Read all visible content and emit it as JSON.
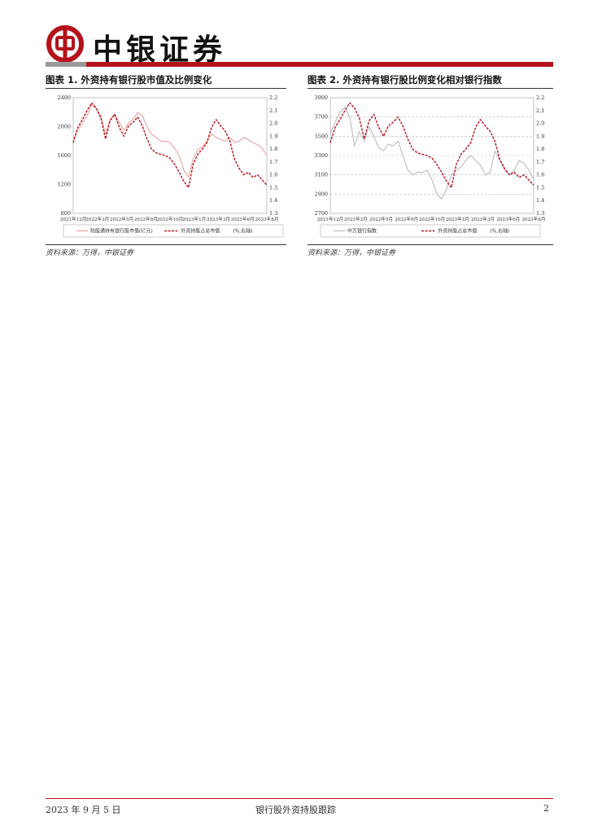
{
  "header": {
    "company_name": "中银证券",
    "colors": {
      "brand_red": "#b5121b",
      "divider_grey": "#9a9a9a"
    }
  },
  "figures": [
    {
      "title": "图表 1. 外资持有银行股市值及比例变化",
      "source": "资料来源：万得，中银证券"
    },
    {
      "title": "图表 2. 外资持有银行股比例变化相对银行指数",
      "source": "资料来源：万得，中银证券"
    }
  ],
  "chart_data": [
    {
      "type": "line",
      "x_ticks": [
        "2021年12月",
        "2022年3月",
        "2022年5月",
        "2022年8月",
        "2022年10月",
        "2023年1月",
        "2023年3月",
        "2023年6月",
        "2023年8月"
      ],
      "y_left": {
        "ticks": [
          "2400",
          "2000",
          "1600",
          "1200",
          "800"
        ],
        "lim": [
          800,
          2400
        ]
      },
      "y_right": {
        "ticks": [
          "2.2",
          "2.1",
          "2.0",
          "1.9",
          "1.8",
          "1.7",
          "1.6",
          "1.5",
          "1.4",
          "1.3"
        ],
        "lim": [
          1.3,
          2.2
        ]
      },
      "series": [
        {
          "name": "陆股通持有银行股市值(亿元)",
          "axis": "left",
          "color": "#e8a3a3",
          "style": "solid",
          "values": [
            1830,
            1950,
            2050,
            2150,
            2300,
            2250,
            2150,
            1900,
            2100,
            2180,
            2050,
            1950,
            2050,
            2100,
            2200,
            2150,
            2000,
            1900,
            1850,
            1800,
            1800,
            1780,
            1700,
            1600,
            1400,
            1300,
            1550,
            1680,
            1720,
            1800,
            1900,
            1850,
            1820,
            1800,
            1850,
            1780,
            1800,
            1850,
            1820,
            1780,
            1750,
            1700,
            1600
          ]
        },
        {
          "name": "外资持股占总市值",
          "axis": "right",
          "color": "#b5121b",
          "style": "dashed",
          "values": [
            1.85,
            1.97,
            2.03,
            2.1,
            2.16,
            2.12,
            2.04,
            1.88,
            2.02,
            2.07,
            1.97,
            1.9,
            1.98,
            2.01,
            2.05,
            1.98,
            1.88,
            1.8,
            1.77,
            1.76,
            1.75,
            1.73,
            1.68,
            1.62,
            1.55,
            1.5,
            1.68,
            1.76,
            1.8,
            1.85,
            1.97,
            2.03,
            1.98,
            1.94,
            1.86,
            1.72,
            1.65,
            1.6,
            1.62,
            1.58,
            1.6,
            1.56,
            1.52
          ]
        }
      ],
      "legend": [
        "陆股通持有银行股市值(亿元)",
        "外资持股占总市值",
        "(%,右轴)"
      ]
    },
    {
      "type": "line",
      "x_ticks": [
        "2021年12月",
        "2022年3月",
        "2022年5月",
        "2022年8月",
        "2022年10月",
        "2023年1月",
        "2023年3月",
        "2023年6月",
        "2023年8月"
      ],
      "y_left": {
        "ticks": [
          "3900",
          "3700",
          "3500",
          "3300",
          "3100",
          "2900",
          "2700"
        ],
        "lim": [
          2700,
          3900
        ]
      },
      "y_right": {
        "ticks": [
          "2.2",
          "2.1",
          "2.0",
          "1.9",
          "1.8",
          "1.7",
          "1.6",
          "1.5",
          "1.4",
          "1.3"
        ],
        "lim": [
          1.3,
          2.2
        ]
      },
      "series": [
        {
          "name": "中万银行指数",
          "axis": "left",
          "color": "#bcbcbc",
          "style": "solid",
          "values": [
            3520,
            3650,
            3750,
            3800,
            3700,
            3400,
            3550,
            3450,
            3600,
            3500,
            3380,
            3350,
            3420,
            3400,
            3450,
            3300,
            3150,
            3100,
            3130,
            3120,
            3150,
            3050,
            2900,
            2850,
            2950,
            3100,
            3150,
            3180,
            3250,
            3300,
            3250,
            3200,
            3100,
            3120,
            3350,
            3250,
            3150,
            3100,
            3150,
            3250,
            3220,
            3150,
            3050
          ]
        },
        {
          "name": "外资持股占总市值",
          "axis": "right",
          "color": "#b5121b",
          "style": "dashed",
          "values": [
            1.85,
            1.97,
            2.03,
            2.1,
            2.16,
            2.12,
            2.04,
            1.88,
            2.02,
            2.07,
            1.97,
            1.9,
            1.98,
            2.01,
            2.05,
            1.98,
            1.88,
            1.8,
            1.77,
            1.76,
            1.75,
            1.73,
            1.68,
            1.62,
            1.55,
            1.5,
            1.68,
            1.76,
            1.8,
            1.85,
            1.97,
            2.03,
            1.98,
            1.94,
            1.86,
            1.72,
            1.65,
            1.6,
            1.62,
            1.58,
            1.6,
            1.56,
            1.52
          ]
        }
      ],
      "legend": [
        "中万银行指数",
        "外资持股占总市值",
        "(%,右轴)"
      ]
    }
  ],
  "footer": {
    "date": "2023 年 9 月 5 日",
    "report_title": "银行股外资持股跟踪",
    "page_number": "2"
  }
}
